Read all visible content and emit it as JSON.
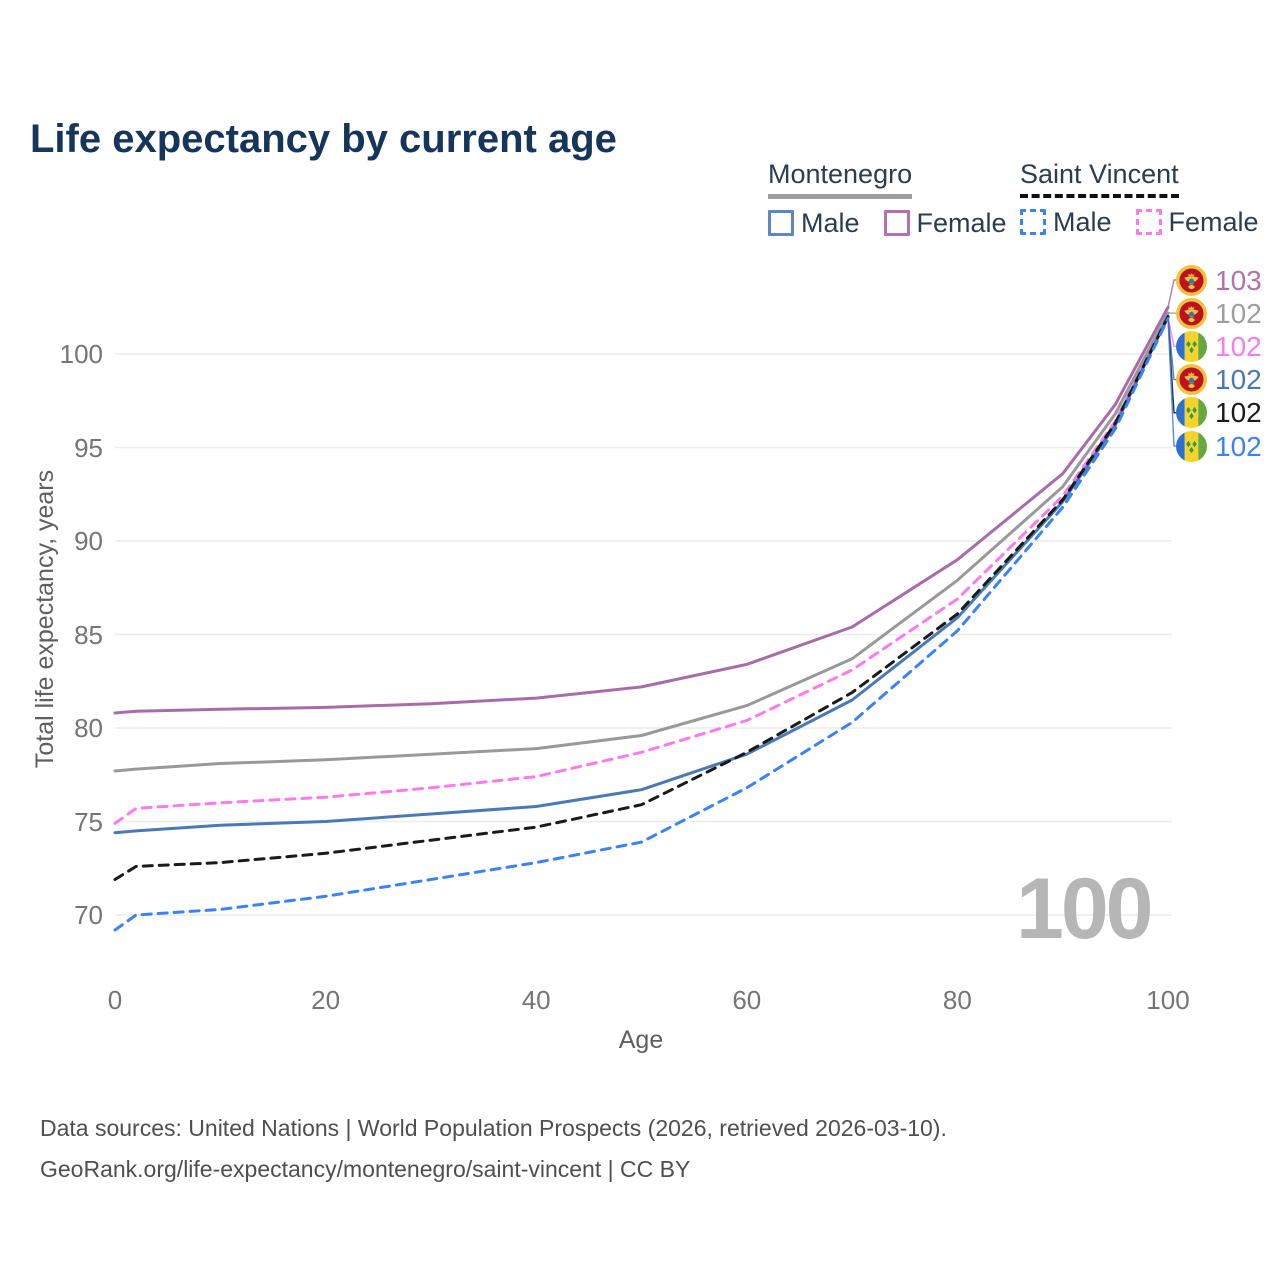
{
  "title": "Life expectancy by current age",
  "legend": {
    "groups": [
      {
        "name": "Montenegro",
        "line_style": "solid",
        "underline_color": "#9e9e9e",
        "items": [
          {
            "label": "Male",
            "color": "#5b87c5",
            "dashed": false
          },
          {
            "label": "Female",
            "color": "#b272ae",
            "dashed": false
          }
        ]
      },
      {
        "name": "Saint Vincent",
        "line_style": "dashed",
        "underline_color": "#111111",
        "items": [
          {
            "label": "Male",
            "color": "#3b82f6",
            "dashed": true
          },
          {
            "label": "Female",
            "color": "#fb7bef",
            "dashed": true
          }
        ]
      }
    ]
  },
  "end_labels": [
    {
      "value": "103",
      "color": "#b272ae",
      "flag": "montenegro"
    },
    {
      "value": "102",
      "color": "#9e9e9e",
      "flag": "montenegro"
    },
    {
      "value": "102",
      "color": "#fb7bef",
      "flag": "saint-vincent"
    },
    {
      "value": "102",
      "color": "#4a7ab5",
      "flag": "montenegro"
    },
    {
      "value": "102",
      "color": "#1a1a1a",
      "flag": "saint-vincent"
    },
    {
      "value": "102",
      "color": "#3b82f6",
      "flag": "saint-vincent"
    }
  ],
  "watermark": "100",
  "footer": {
    "line1": "Data sources: United Nations | World Population Prospects (2026, retrieved 2026-03-10).",
    "line2": "GeoRank.org/life-expectancy/montenegro/saint-vincent | CC BY"
  },
  "chart_data": {
    "type": "line",
    "title": "Life expectancy by current age",
    "xlabel": "Age",
    "ylabel": "Total life expectancy, years",
    "xlim": [
      0,
      100
    ],
    "ylim": [
      68.5,
      103.5
    ],
    "xticks": [
      0,
      20,
      40,
      60,
      80,
      100
    ],
    "yticks": [
      100,
      95,
      90,
      85,
      80,
      75,
      70
    ],
    "grid": "horizontal",
    "legend_position": "top-right",
    "x": [
      0,
      2,
      10,
      20,
      30,
      40,
      50,
      60,
      70,
      80,
      90,
      95,
      100
    ],
    "series": [
      {
        "name": "Montenegro Female",
        "color": "#a96cab",
        "dash": false,
        "end_label": "103",
        "values": [
          80.8,
          80.9,
          81.0,
          81.1,
          81.3,
          81.6,
          82.2,
          83.4,
          85.4,
          89.0,
          93.6,
          97.3,
          102.5
        ]
      },
      {
        "name": "Montenegro",
        "color": "#999999",
        "dash": false,
        "end_label": "102",
        "values": [
          77.7,
          77.8,
          78.1,
          78.3,
          78.6,
          78.9,
          79.6,
          81.2,
          83.7,
          87.9,
          92.9,
          96.8,
          102.2
        ]
      },
      {
        "name": "Saint Vincent Female",
        "color": "#fb7bef",
        "dash": true,
        "end_label": "102",
        "values": [
          74.9,
          75.7,
          76.0,
          76.3,
          76.8,
          77.4,
          78.7,
          80.4,
          83.1,
          86.9,
          92.4,
          96.4,
          102.0
        ]
      },
      {
        "name": "Montenegro Male",
        "color": "#4a7ab5",
        "dash": false,
        "end_label": "102",
        "values": [
          74.4,
          74.5,
          74.8,
          75.0,
          75.4,
          75.8,
          76.7,
          78.6,
          81.5,
          85.9,
          92.1,
          96.2,
          102.0
        ]
      },
      {
        "name": "Saint Vincent",
        "color": "#1a1a1a",
        "dash": true,
        "end_label": "102",
        "values": [
          71.9,
          72.6,
          72.8,
          73.3,
          74.0,
          74.7,
          75.9,
          78.7,
          81.9,
          86.1,
          92.2,
          96.3,
          102.0
        ]
      },
      {
        "name": "Saint Vincent Male",
        "color": "#3b82f6",
        "dash": true,
        "end_label": "102",
        "values": [
          69.2,
          70.0,
          70.3,
          71.0,
          71.9,
          72.8,
          73.9,
          76.8,
          80.3,
          85.2,
          91.8,
          96.0,
          101.9
        ]
      }
    ]
  }
}
